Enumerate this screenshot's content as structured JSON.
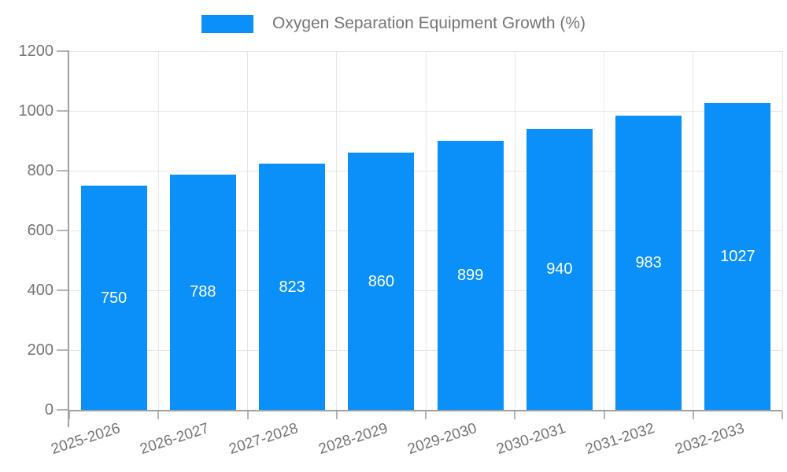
{
  "legend": {
    "label": "Oxygen Separation Equipment Growth (%)"
  },
  "colors": {
    "bar": "#0a90f8",
    "axis": "#a0a0a0",
    "grid": "#e6e6e6",
    "tick": "#b5b5b5",
    "text": "#757575",
    "value_text": "#ffffff",
    "background": "#ffffff"
  },
  "chart_data": {
    "type": "bar",
    "title": "Oxygen Separation Equipment Growth (%)",
    "categories": [
      "2025-2026",
      "2026-2027",
      "2027-2028",
      "2028-2029",
      "2029-2030",
      "2030-2031",
      "2031-2032",
      "2032-2033"
    ],
    "values": [
      750,
      788,
      823,
      860,
      899,
      940,
      983,
      1027
    ],
    "xlabel": "",
    "ylabel": "",
    "ylim": [
      0,
      1200
    ],
    "yticks": [
      0,
      200,
      400,
      600,
      800,
      1000,
      1200
    ],
    "grid": true,
    "legend_position": "top",
    "value_labels": "inside-center"
  }
}
